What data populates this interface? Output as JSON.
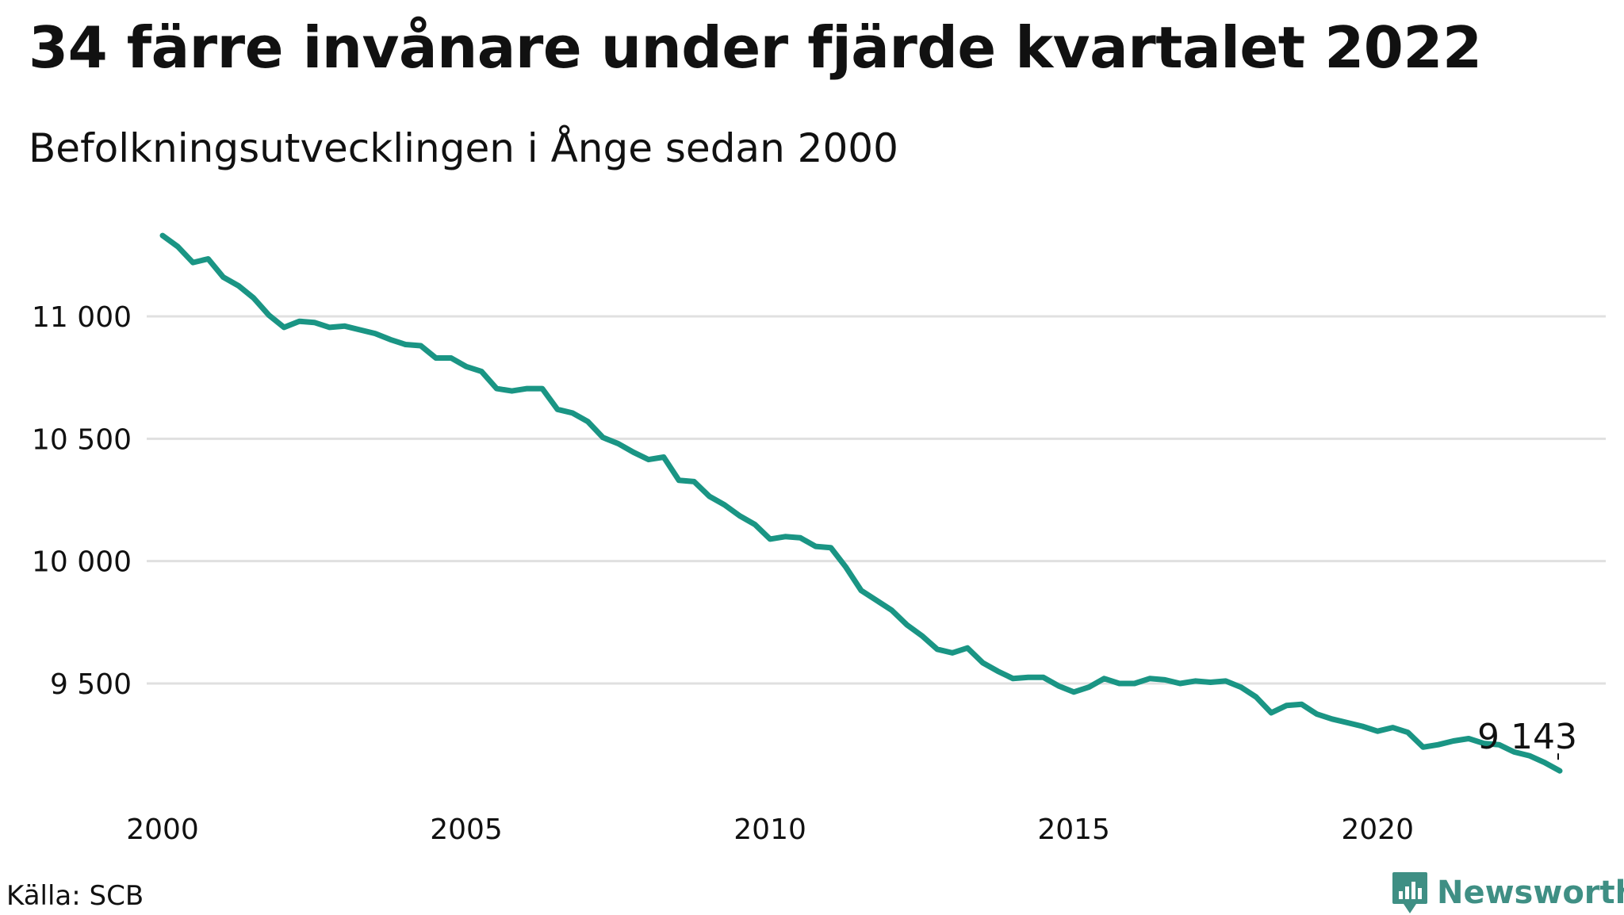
{
  "title": "34 färre invånare under fjärde kvartalet 2022",
  "subtitle": "Befolkningsutvecklingen i Ånge sedan 2000",
  "source": "Källa: SCB",
  "brand": {
    "name": "Newsworthy",
    "icon": "newsworthy-logo-icon",
    "color": "#3f8f84"
  },
  "colors": {
    "line": "#1a9584",
    "grid": "#e0e0e0",
    "text": "#111111"
  },
  "chart_data": {
    "type": "line",
    "title": "34 färre invånare under fjärde kvartalet 2022",
    "subtitle": "Befolkningsutvecklingen i Ånge sedan 2000",
    "xlabel": "",
    "ylabel": "",
    "x_ticks": [
      2000,
      2005,
      2010,
      2015,
      2020
    ],
    "x_tick_labels": [
      "2000",
      "2005",
      "2010",
      "2015",
      "2020"
    ],
    "y_ticks": [
      9500,
      10000,
      10500,
      11000
    ],
    "y_tick_labels": [
      "9 500",
      "10 000",
      "10 500",
      "11 000"
    ],
    "xlim": [
      2000,
      2023.4
    ],
    "ylim": [
      9120,
      11380
    ],
    "grid": "horizontal",
    "legend": "none",
    "end_label": "9 143",
    "series": [
      {
        "x": [
          2000.0,
          2000.25,
          2000.5,
          2000.75,
          2001.0,
          2001.25,
          2001.5,
          2001.75,
          2002.0,
          2002.25,
          2002.5,
          2002.75,
          2003.0,
          2003.25,
          2003.5,
          2003.75,
          2004.0,
          2004.25,
          2004.5,
          2004.75,
          2005.0,
          2005.25,
          2005.5,
          2005.75,
          2006.0,
          2006.25,
          2006.5,
          2006.75,
          2007.0,
          2007.25,
          2007.5,
          2007.75,
          2008.0,
          2008.25,
          2008.5,
          2008.75,
          2009.0,
          2009.25,
          2009.5,
          2009.75,
          2010.0,
          2010.25,
          2010.5,
          2010.75,
          2011.0,
          2011.25,
          2011.5,
          2011.75,
          2012.0,
          2012.25,
          2012.5,
          2012.75,
          2013.0,
          2013.25,
          2013.5,
          2013.75,
          2014.0,
          2014.25,
          2014.5,
          2014.75,
          2015.0,
          2015.25,
          2015.5,
          2015.75,
          2016.0,
          2016.25,
          2016.5,
          2016.75,
          2017.0,
          2017.25,
          2017.5,
          2017.75,
          2018.0,
          2018.25,
          2018.5,
          2018.75,
          2019.0,
          2019.25,
          2019.5,
          2019.75,
          2020.0,
          2020.25,
          2020.5,
          2020.75,
          2021.0,
          2021.25,
          2021.5,
          2021.75,
          2022.0,
          2022.25,
          2022.5,
          2022.75,
          2023.0
        ],
        "values": [
          11330,
          11285,
          11220,
          11235,
          11160,
          11125,
          11075,
          11005,
          10955,
          10980,
          10975,
          10955,
          10960,
          10945,
          10930,
          10905,
          10885,
          10880,
          10830,
          10830,
          10795,
          10775,
          10705,
          10695,
          10705,
          10705,
          10620,
          10605,
          10570,
          10505,
          10480,
          10445,
          10415,
          10425,
          10330,
          10325,
          10265,
          10230,
          10185,
          10150,
          10090,
          10100,
          10095,
          10060,
          10055,
          9975,
          9880,
          9840,
          9800,
          9740,
          9695,
          9640,
          9625,
          9645,
          9585,
          9550,
          9520,
          9525,
          9525,
          9490,
          9465,
          9485,
          9520,
          9500,
          9500,
          9520,
          9515,
          9500,
          9510,
          9505,
          9510,
          9485,
          9445,
          9380,
          9410,
          9415,
          9375,
          9355,
          9340,
          9325,
          9305,
          9320,
          9300,
          9240,
          9250,
          9265,
          9275,
          9255,
          9250,
          9220,
          9205,
          9177,
          9143
        ]
      }
    ]
  }
}
